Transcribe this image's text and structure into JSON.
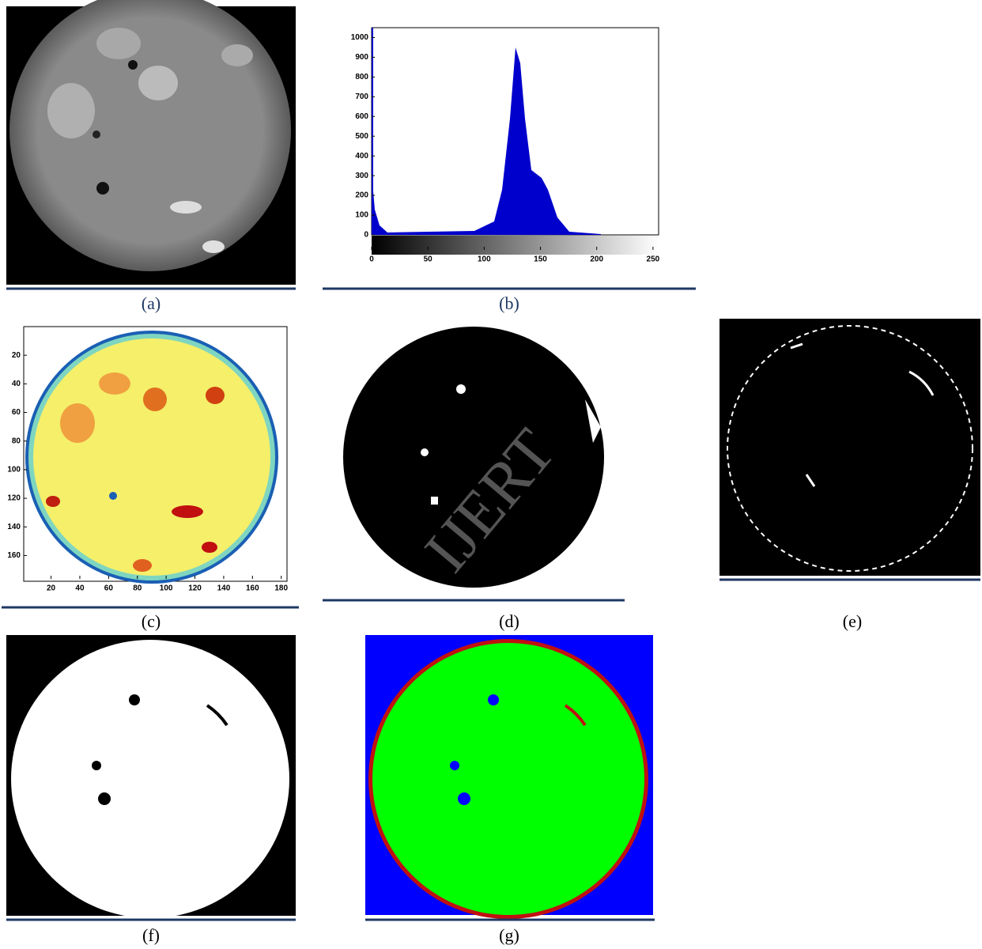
{
  "captions": [
    "(a)",
    "(b)",
    "(c)",
    "(d)",
    "(e)",
    "(f)",
    "(g)"
  ],
  "histogram": {
    "xlim": [
      0,
      255
    ],
    "ylim": [
      0,
      1050
    ],
    "xticks": [
      0,
      50,
      100,
      150,
      200,
      250
    ],
    "yticks": [
      0,
      100,
      200,
      300,
      400,
      500,
      600,
      700,
      800,
      900,
      1000
    ]
  },
  "contour": {
    "xlim": [
      1,
      184
    ],
    "ylim": [
      0,
      178
    ],
    "xticks": [
      20,
      40,
      60,
      80,
      100,
      120,
      140,
      160,
      180
    ],
    "yticks": [
      20,
      40,
      60,
      80,
      100,
      120,
      140,
      160
    ]
  },
  "watermark": "IJERT"
}
